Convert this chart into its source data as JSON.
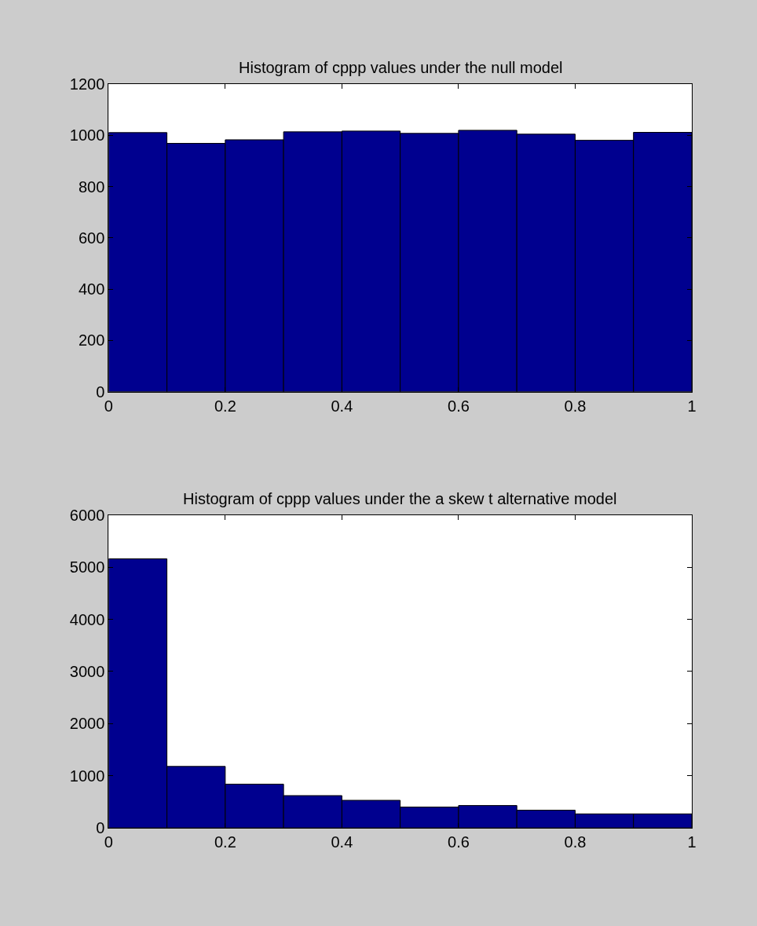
{
  "chart_data": [
    {
      "type": "histogram",
      "title": "Histogram of cppp values under the null model",
      "bins": [
        0,
        0.1,
        0.2,
        0.3,
        0.4,
        0.5,
        0.6,
        0.7,
        0.8,
        0.9,
        1
      ],
      "values": [
        1011,
        969,
        983,
        1014,
        1017,
        1008,
        1020,
        1005,
        981,
        1012
      ],
      "color": "#00008f",
      "xlim": [
        0,
        1
      ],
      "xticks": [
        0,
        0.2,
        0.4,
        0.6,
        0.8,
        1
      ],
      "ylim": [
        0,
        1200
      ],
      "yticks": [
        0,
        200,
        400,
        600,
        800,
        1000,
        1200
      ]
    },
    {
      "type": "histogram",
      "title": "Histogram of cppp values under the a skew t alternative model",
      "bins": [
        0,
        0.1,
        0.2,
        0.3,
        0.4,
        0.5,
        0.6,
        0.7,
        0.8,
        0.9,
        1
      ],
      "values": [
        5160,
        1180,
        840,
        620,
        530,
        400,
        430,
        340,
        270,
        270
      ],
      "color": "#00008f",
      "xlim": [
        0,
        1
      ],
      "xticks": [
        0,
        0.2,
        0.4,
        0.6,
        0.8,
        1
      ],
      "ylim": [
        0,
        6000
      ],
      "yticks": [
        0,
        1000,
        2000,
        3000,
        4000,
        5000,
        6000
      ]
    }
  ]
}
